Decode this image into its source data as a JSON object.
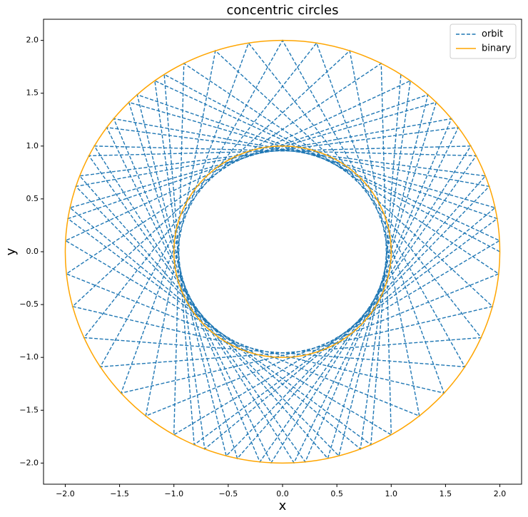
{
  "chart_data": {
    "type": "line",
    "title": "concentric circles",
    "x_label": "x",
    "y_label": "y",
    "xlim": [
      -2.2,
      2.2
    ],
    "ylim": [
      -2.2,
      2.2
    ],
    "xticks": [
      {
        "value": -2,
        "label": "−2.0"
      },
      {
        "value": -1.5,
        "label": "−1.5"
      },
      {
        "value": -1,
        "label": "−1.0"
      },
      {
        "value": -0.5,
        "label": "−0.5"
      },
      {
        "value": 0,
        "label": "0.0"
      },
      0.5,
      {
        "value": 1,
        "label": "1.0"
      },
      1.5,
      {
        "value": 2,
        "label": "2.0"
      }
    ],
    "yticks": [
      {
        "value": -2,
        "label": "−2.0"
      },
      {
        "value": -1.5,
        "label": "−1.5"
      },
      {
        "value": -1,
        "label": "−1.0"
      },
      {
        "value": -0.5,
        "label": "−0.5"
      },
      {
        "value": 0,
        "label": "0.0"
      },
      0.5,
      {
        "value": 1,
        "label": "1.0"
      },
      1.5,
      {
        "value": 2,
        "label": "2.0"
      }
    ],
    "legend": "upper right",
    "series": [
      {
        "name": "orbit",
        "color": "#1f77b4",
        "dashed": true,
        "x": [
          2,
          -1.089,
          -0.813,
          1.975,
          -1.338,
          -0.518,
          1.902,
          -1.554,
          -0.209,
          1.782,
          -1.732,
          0.105,
          1.618,
          -1.867,
          0.416,
          1.414,
          -1.956,
          0.717,
          1.176,
          -1.997,
          1,
          0.908,
          -1.989,
          1.259,
          0.618,
          -1.932,
          1.486,
          0.313,
          -1.827,
          1.677,
          0,
          -1.677,
          1.827,
          -0.313,
          -1.486,
          1.932,
          -0.618,
          -1.259,
          1.989,
          -0.908,
          -1,
          1.997,
          -1.176,
          -0.717,
          1.956,
          -1.414,
          -0.416,
          1.867,
          -1.618,
          -0.105,
          1.732,
          -1.782,
          0.209,
          1.554,
          -1.902,
          0.518,
          1.338,
          -1.975,
          0.813,
          1.089
        ],
        "y": [
          0,
          1.677,
          -1.827,
          0.313,
          1.486,
          -1.932,
          0.618,
          1.259,
          -1.989,
          0.908,
          1,
          -1.997,
          1.176,
          0.717,
          -1.956,
          1.414,
          0.416,
          -1.867,
          1.618,
          0.105,
          -1.732,
          1.782,
          -0.209,
          -1.554,
          1.902,
          -0.518,
          -1.338,
          1.975,
          -0.813,
          -1.089,
          2,
          -1.089,
          -0.813,
          1.975,
          -1.338,
          -0.518,
          1.902,
          -1.554,
          -0.209,
          1.782,
          -1.732,
          0.105,
          1.618,
          -1.867,
          0.416,
          1.414,
          -1.956,
          0.717,
          1.176,
          -1.997,
          1,
          0.908,
          -1.989,
          1.259,
          0.618,
          -1.932,
          1.486,
          0.313,
          -1.827,
          1.677
        ]
      },
      {
        "name": "binary",
        "color": "#ffa500",
        "radii": [
          1,
          2
        ]
      }
    ]
  }
}
